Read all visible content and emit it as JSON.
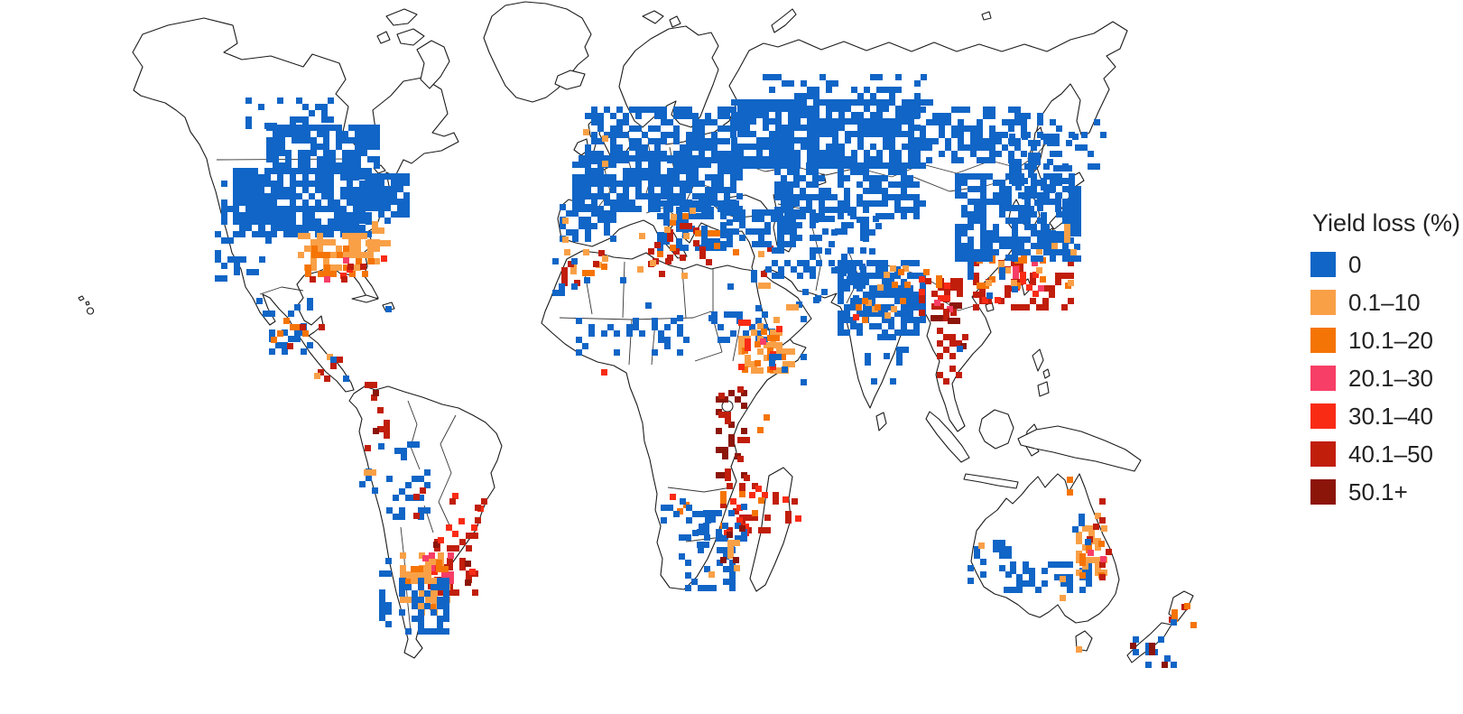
{
  "figure": {
    "kind": "gridded world choropleth map",
    "legend_title": "Yield loss (%)"
  },
  "legend": {
    "title": "Yield loss (%)",
    "classes": [
      {
        "label": "0",
        "color": "#1065C6"
      },
      {
        "label": "0.1–10",
        "color": "#F9A047"
      },
      {
        "label": "10.1–20",
        "color": "#F57406"
      },
      {
        "label": "20.1–30",
        "color": "#F73E66"
      },
      {
        "label": "30.1–40",
        "color": "#F92B15"
      },
      {
        "label": "40.1–50",
        "color": "#C11E0C"
      },
      {
        "label": "50.1+",
        "color": "#8C150A"
      }
    ]
  },
  "map_data": {
    "type": "heatmap",
    "cell_size_px": 7,
    "outline_color": "#1b1b1b",
    "cluster_columns": [
      "region",
      "class_index",
      "x",
      "y",
      "w",
      "h",
      "fill_fraction"
    ],
    "clusters": [
      [
        "us-canada-prairies",
        0,
        295,
        138,
        125,
        48,
        0.75
      ],
      [
        "us-midwest",
        0,
        258,
        186,
        150,
        72,
        0.8
      ],
      [
        "us-west-scatter",
        0,
        238,
        200,
        60,
        110,
        0.28
      ],
      [
        "canada-south-scatter",
        0,
        272,
        108,
        100,
        32,
        0.3
      ],
      [
        "us-northeast",
        0,
        398,
        192,
        50,
        55,
        0.7
      ],
      [
        "us-southeast-light",
        1,
        330,
        258,
        85,
        42,
        0.55
      ],
      [
        "us-southeast-orange",
        2,
        338,
        272,
        75,
        30,
        0.18
      ],
      [
        "us-gulf-pink",
        3,
        345,
        285,
        65,
        22,
        0.1
      ],
      [
        "us-gulf-red",
        4,
        342,
        288,
        60,
        20,
        0.1
      ],
      [
        "us-gulf-darkred",
        5,
        336,
        292,
        75,
        22,
        0.12
      ],
      [
        "us-atlantic-orange",
        1,
        405,
        245,
        28,
        42,
        0.22
      ],
      [
        "us-atlantic-red",
        4,
        408,
        255,
        22,
        32,
        0.12
      ],
      [
        "mexico-blue",
        0,
        284,
        330,
        58,
        62,
        0.25
      ],
      [
        "mexico-orange",
        2,
        300,
        352,
        42,
        38,
        0.12
      ],
      [
        "mexico-darkred",
        5,
        318,
        352,
        40,
        38,
        0.08
      ],
      [
        "central-america-darkred",
        5,
        345,
        388,
        42,
        36,
        0.12
      ],
      [
        "central-america-light",
        1,
        348,
        392,
        38,
        30,
        0.12
      ],
      [
        "central-america-blue",
        0,
        352,
        395,
        35,
        28,
        0.1
      ],
      [
        "caribbean-specks",
        0,
        392,
        332,
        45,
        16,
        0.12
      ],
      [
        "andes-north-brick",
        5,
        404,
        416,
        24,
        80,
        0.22
      ],
      [
        "andes-north-deep",
        6,
        406,
        432,
        20,
        60,
        0.12
      ],
      [
        "andes-pink",
        3,
        407,
        468,
        16,
        30,
        0.1
      ],
      [
        "peru-coast-blue",
        0,
        398,
        484,
        26,
        58,
        0.18
      ],
      [
        "peru-coast-light",
        1,
        403,
        492,
        20,
        48,
        0.12
      ],
      [
        "bolivia-blue",
        0,
        428,
        520,
        48,
        52,
        0.35
      ],
      [
        "bolivia-brick",
        5,
        444,
        540,
        26,
        30,
        0.15
      ],
      [
        "brazil-center-red",
        4,
        494,
        546,
        42,
        44,
        0.22
      ],
      [
        "brazil-center-brick",
        5,
        498,
        552,
        36,
        38,
        0.15
      ],
      [
        "brazil-center-pink",
        3,
        502,
        548,
        26,
        20,
        0.08
      ],
      [
        "brazil-south-brick",
        5,
        474,
        590,
        56,
        70,
        0.42
      ],
      [
        "brazil-south-deep",
        6,
        480,
        600,
        46,
        55,
        0.18
      ],
      [
        "brazil-south-red",
        4,
        478,
        595,
        46,
        50,
        0.12
      ],
      [
        "uruguay-pink",
        3,
        468,
        612,
        30,
        30,
        0.1
      ],
      [
        "pampas-light",
        1,
        443,
        612,
        52,
        68,
        0.4
      ],
      [
        "pampas-orange",
        2,
        448,
        620,
        46,
        55,
        0.15
      ],
      [
        "pampas-blue",
        0,
        442,
        640,
        56,
        62,
        0.4
      ],
      [
        "pampas-pink",
        3,
        447,
        615,
        26,
        25,
        0.08
      ],
      [
        "chile-blue-strip",
        0,
        420,
        618,
        13,
        105,
        0.5
      ],
      [
        "west-brazil-scatter",
        0,
        430,
        468,
        45,
        42,
        0.07
      ],
      [
        "north-europe-blue",
        0,
        648,
        118,
        165,
        62,
        0.6
      ],
      [
        "central-europe-blue",
        0,
        634,
        172,
        185,
        62,
        0.75
      ],
      [
        "spain-blue",
        0,
        620,
        226,
        62,
        42,
        0.5
      ],
      [
        "italy-balkans-blue",
        0,
        728,
        222,
        85,
        52,
        0.45
      ],
      [
        "uk-orange",
        1,
        646,
        136,
        30,
        48,
        0.1
      ],
      [
        "uk-blue",
        0,
        648,
        140,
        28,
        44,
        0.08
      ],
      [
        "italy-brick",
        5,
        718,
        240,
        48,
        52,
        0.18
      ],
      [
        "mediterranean-orange",
        2,
        714,
        236,
        52,
        48,
        0.12
      ],
      [
        "mediterranean-light",
        1,
        708,
        230,
        58,
        42,
        0.1
      ],
      [
        "spain-south-brick",
        5,
        628,
        256,
        52,
        24,
        0.1
      ],
      [
        "portugal-light",
        1,
        616,
        234,
        14,
        46,
        0.25
      ],
      [
        "greece-brick",
        5,
        768,
        252,
        48,
        36,
        0.1
      ],
      [
        "greece-orange",
        2,
        770,
        255,
        45,
        30,
        0.08
      ],
      [
        "morocco-light",
        1,
        618,
        276,
        60,
        36,
        0.15
      ],
      [
        "morocco-brick",
        5,
        622,
        282,
        55,
        32,
        0.1
      ],
      [
        "morocco-blue",
        0,
        612,
        286,
        42,
        42,
        0.12
      ],
      [
        "maghreb-orange",
        2,
        638,
        278,
        48,
        22,
        0.08
      ],
      [
        "libya-coast-brick",
        5,
        702,
        286,
        65,
        18,
        0.06
      ],
      [
        "libya-coast-light",
        1,
        706,
        288,
        60,
        16,
        0.06
      ],
      [
        "turkey-blue",
        0,
        798,
        232,
        85,
        38,
        0.6
      ],
      [
        "levant-brick",
        5,
        836,
        272,
        26,
        42,
        0.1
      ],
      [
        "levant-light",
        1,
        833,
        278,
        22,
        36,
        0.1
      ],
      [
        "nile-blue",
        0,
        818,
        292,
        28,
        28,
        0.1
      ],
      [
        "nile-brick",
        5,
        822,
        296,
        22,
        24,
        0.06
      ],
      [
        "caucasus-iran-blue",
        0,
        848,
        232,
        125,
        75,
        0.3
      ],
      [
        "mideast-blue-scatter",
        0,
        868,
        292,
        85,
        52,
        0.12
      ],
      [
        "yemen-light",
        1,
        850,
        330,
        30,
        25,
        0.1
      ],
      [
        "yemen-blue",
        0,
        848,
        335,
        32,
        25,
        0.1
      ],
      [
        "arabia-specks",
        0,
        845,
        315,
        60,
        60,
        0.03
      ],
      [
        "sahara-specks",
        0,
        680,
        300,
        140,
        60,
        0.02
      ],
      [
        "european-russia-blue",
        0,
        810,
        110,
        205,
        72,
        0.8
      ],
      [
        "siberia-south-blue",
        0,
        1012,
        118,
        125,
        62,
        0.55
      ],
      [
        "north-russia-scatter",
        0,
        845,
        82,
        190,
        32,
        0.3
      ],
      [
        "kazakhstan-blue",
        0,
        858,
        180,
        165,
        58,
        0.6
      ],
      [
        "east-siberia-scatter",
        0,
        1135,
        125,
        85,
        62,
        0.2
      ],
      [
        "afghan-blue",
        0,
        900,
        240,
        80,
        60,
        0.15
      ],
      [
        "nw-india-blue",
        0,
        928,
        288,
        95,
        82,
        0.65
      ],
      [
        "india-light-1",
        1,
        952,
        318,
        45,
        32,
        0.25
      ],
      [
        "india-light-2",
        1,
        972,
        294,
        32,
        22,
        0.2
      ],
      [
        "india-orange-specks",
        2,
        948,
        330,
        52,
        30,
        0.1
      ],
      [
        "south-india-blue",
        0,
        958,
        370,
        48,
        52,
        0.18
      ],
      [
        "india-west-coast-red",
        4,
        945,
        348,
        14,
        52,
        0.12
      ],
      [
        "bangladesh-brick",
        5,
        1018,
        308,
        48,
        42,
        0.4
      ],
      [
        "bangladesh-deep",
        6,
        1024,
        314,
        40,
        36,
        0.18
      ],
      [
        "bangladesh-red",
        4,
        1018,
        306,
        42,
        32,
        0.12
      ],
      [
        "bangladesh-pink",
        3,
        1028,
        318,
        28,
        22,
        0.08
      ],
      [
        "myanmar-brick",
        5,
        1038,
        342,
        32,
        82,
        0.32
      ],
      [
        "myanmar-deep",
        6,
        1043,
        352,
        24,
        66,
        0.15
      ],
      [
        "myanmar-blue",
        0,
        1046,
        355,
        16,
        32,
        0.12
      ],
      [
        "nepal-orange",
        2,
        988,
        298,
        52,
        16,
        0.1
      ],
      [
        "south-china-brick",
        5,
        1078,
        288,
        112,
        52,
        0.3
      ],
      [
        "south-china-red",
        4,
        1088,
        294,
        92,
        42,
        0.12
      ],
      [
        "south-china-orange",
        2,
        1082,
        278,
        102,
        42,
        0.12
      ],
      [
        "south-china-light",
        1,
        1085,
        275,
        100,
        38,
        0.1
      ],
      [
        "south-china-pink",
        3,
        1108,
        288,
        62,
        36,
        0.08
      ],
      [
        "south-china-blue",
        0,
        1072,
        282,
        62,
        48,
        0.15
      ],
      [
        "east-china-blue",
        0,
        1058,
        192,
        135,
        92,
        0.6
      ],
      [
        "manchuria-blue",
        0,
        1118,
        148,
        75,
        62,
        0.45
      ],
      [
        "korea-blue",
        0,
        1132,
        214,
        22,
        42,
        0.35
      ],
      [
        "japan-blue",
        0,
        1162,
        200,
        32,
        72,
        0.25
      ],
      [
        "japan-light",
        1,
        1158,
        248,
        32,
        32,
        0.2
      ],
      [
        "japan-red-specks",
        4,
        1182,
        212,
        16,
        28,
        0.1
      ],
      [
        "sahel-blue",
        0,
        638,
        352,
        125,
        38,
        0.3
      ],
      [
        "west-africa-red",
        4,
        652,
        388,
        32,
        26,
        0.1
      ],
      [
        "west-africa-deep",
        6,
        658,
        394,
        26,
        20,
        0.08
      ],
      [
        "sudan-blue",
        0,
        788,
        338,
        62,
        42,
        0.2
      ],
      [
        "ethiopia-light",
        1,
        818,
        358,
        58,
        56,
        0.4
      ],
      [
        "ethiopia-orange",
        2,
        822,
        364,
        48,
        46,
        0.2
      ],
      [
        "ethiopia-red",
        4,
        818,
        354,
        52,
        52,
        0.12
      ],
      [
        "ethiopia-pink",
        3,
        828,
        368,
        32,
        32,
        0.06
      ],
      [
        "horn-blue",
        0,
        852,
        392,
        45,
        32,
        0.12
      ],
      [
        "rift-valley-deep",
        6,
        793,
        418,
        32,
        112,
        0.22
      ],
      [
        "rift-valley-brick",
        5,
        796,
        428,
        30,
        102,
        0.12
      ],
      [
        "kenya-orange-specks",
        2,
        818,
        438,
        42,
        42,
        0.06
      ],
      [
        "zambezi-brick",
        5,
        798,
        528,
        52,
        62,
        0.2
      ],
      [
        "zambezi-red",
        4,
        802,
        538,
        46,
        52,
        0.08
      ],
      [
        "zambezi-orange",
        2,
        798,
        544,
        46,
        46,
        0.08
      ],
      [
        "angola-orange",
        2,
        736,
        528,
        42,
        42,
        0.1
      ],
      [
        "angola-red",
        4,
        735,
        533,
        36,
        36,
        0.06
      ],
      [
        "angola-namibia-blue",
        0,
        732,
        552,
        52,
        38,
        0.3
      ],
      [
        "zimbabwe-blue",
        0,
        772,
        558,
        52,
        48,
        0.4
      ],
      [
        "zimbabwe-orange-specks",
        2,
        782,
        562,
        36,
        32,
        0.08
      ],
      [
        "south-africa-blue",
        0,
        752,
        592,
        62,
        58,
        0.4
      ],
      [
        "south-africa-light",
        1,
        778,
        598,
        36,
        42,
        0.12
      ],
      [
        "south-africa-deep-coast",
        6,
        798,
        582,
        26,
        42,
        0.08
      ],
      [
        "madagascar-brick",
        5,
        856,
        545,
        28,
        32,
        0.15
      ],
      [
        "madagascar-red",
        4,
        860,
        550,
        22,
        25,
        0.08
      ],
      [
        "sw-australia-blue",
        0,
        1072,
        598,
        48,
        48,
        0.45
      ],
      [
        "sw-australia-light",
        1,
        1070,
        594,
        26,
        52,
        0.15
      ],
      [
        "sw-australia-deep-specks",
        6,
        1072,
        630,
        22,
        22,
        0.06
      ],
      [
        "south-australia-blue",
        0,
        1112,
        622,
        95,
        35,
        0.4
      ],
      [
        "south-australia-light",
        1,
        1118,
        638,
        62,
        22,
        0.1
      ],
      [
        "east-australia-light",
        1,
        1192,
        568,
        32,
        72,
        0.3
      ],
      [
        "east-australia-orange",
        2,
        1196,
        578,
        28,
        58,
        0.15
      ],
      [
        "east-australia-brick",
        5,
        1204,
        552,
        22,
        85,
        0.12
      ],
      [
        "east-australia-pink",
        3,
        1198,
        588,
        22,
        42,
        0.06
      ],
      [
        "east-australia-blue",
        0,
        1188,
        562,
        26,
        42,
        0.1
      ],
      [
        "queensland-orange-speck",
        2,
        1168,
        528,
        16,
        16,
        0.1
      ],
      [
        "tasmania-light",
        1,
        1192,
        702,
        18,
        18,
        0.18
      ],
      [
        "tasmania-blue",
        0,
        1194,
        705,
        14,
        14,
        0.1
      ],
      [
        "nz-south-blue",
        0,
        1255,
        705,
        50,
        32,
        0.25
      ],
      [
        "nz-south-deep",
        6,
        1252,
        712,
        48,
        26,
        0.08
      ],
      [
        "nz-north-brick",
        5,
        1295,
        662,
        30,
        30,
        0.12
      ],
      [
        "nz-north-orange",
        2,
        1298,
        668,
        24,
        24,
        0.1
      ],
      [
        "nz-north-blue",
        0,
        1297,
        672,
        22,
        22,
        0.08
      ]
    ]
  }
}
